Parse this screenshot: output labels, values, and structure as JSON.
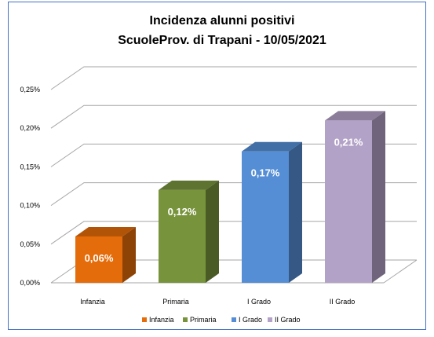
{
  "chart_data": {
    "type": "bar",
    "title_line1": "Incidenza alunni positivi",
    "title_line2": "ScuoleProv. di Trapani - 10/05/2021",
    "categories": [
      "Infanzia",
      "Primaria",
      "I Grado",
      "II Grado"
    ],
    "values": [
      0.06,
      0.12,
      0.17,
      0.21
    ],
    "data_labels": [
      "0,06%",
      "0,12%",
      "0,17%",
      "0,21%"
    ],
    "colors": [
      "#e46c0a",
      "#77933c",
      "#558ed5",
      "#b3a2c7"
    ],
    "y_ticks": [
      "0,00%",
      "0,05%",
      "0,10%",
      "0,15%",
      "0,20%",
      "0,25%"
    ],
    "ylim": [
      0,
      0.25
    ],
    "grid": true,
    "legend_position": "bottom",
    "legend": [
      "Infanzia",
      "Primaria",
      "I Grado",
      "II Grado"
    ]
  }
}
